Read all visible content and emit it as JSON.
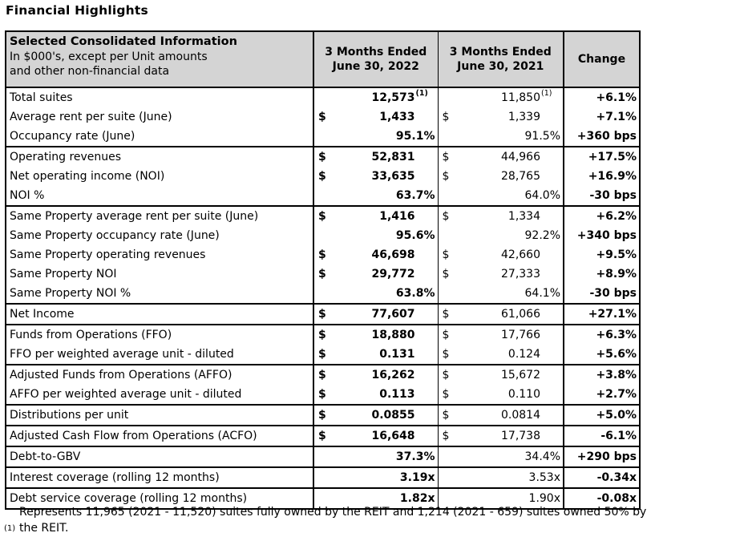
{
  "page_title": "Financial Highlights",
  "table": {
    "colors": {
      "header_bg": "#d4d4d4",
      "border": "#000000",
      "text": "#000000"
    },
    "header": {
      "info_title": "Selected Consolidated Information",
      "info_line2": "In $000's, except per Unit amounts",
      "info_line3": "and other non-financial data",
      "col_2022_line1": "3 Months Ended",
      "col_2022_line2": "June 30, 2022",
      "col_2021_line1": "3 Months Ended",
      "col_2021_line2": "June 30, 2021",
      "col_change": "Change"
    },
    "groups": [
      {
        "rows": [
          {
            "label": "Total suites",
            "y2022": {
              "currency": "",
              "value": "12,573",
              "footnote": "(1)"
            },
            "y2021": {
              "currency": "",
              "value": "11,850",
              "footnote": "(1)"
            },
            "change": "+6.1%"
          },
          {
            "label": "Average rent per suite (June)",
            "y2022": {
              "currency": "$",
              "value": "1,433"
            },
            "y2021": {
              "currency": "$",
              "value": "1,339"
            },
            "change": "+7.1%"
          },
          {
            "label": "Occupancy rate (June)",
            "y2022": {
              "currency": "",
              "value": "95.1%"
            },
            "y2021": {
              "currency": "",
              "value": "91.5%"
            },
            "change": "+360 bps"
          }
        ]
      },
      {
        "rows": [
          {
            "label": "Operating revenues",
            "y2022": {
              "currency": "$",
              "value": "52,831"
            },
            "y2021": {
              "currency": "$",
              "value": "44,966"
            },
            "change": "+17.5%"
          },
          {
            "label": "Net operating income (NOI)",
            "y2022": {
              "currency": "$",
              "value": "33,635"
            },
            "y2021": {
              "currency": "$",
              "value": "28,765"
            },
            "change": "+16.9%"
          },
          {
            "label": "NOI %",
            "y2022": {
              "currency": "",
              "value": "63.7%"
            },
            "y2021": {
              "currency": "",
              "value": "64.0%"
            },
            "change": "-30 bps"
          }
        ]
      },
      {
        "rows": [
          {
            "label": "Same Property average rent per suite (June)",
            "y2022": {
              "currency": "$",
              "value": "1,416"
            },
            "y2021": {
              "currency": "$",
              "value": "1,334"
            },
            "change": "+6.2%"
          },
          {
            "label": "Same Property occupancy rate (June)",
            "y2022": {
              "currency": "",
              "value": "95.6%"
            },
            "y2021": {
              "currency": "",
              "value": "92.2%"
            },
            "change": "+340 bps"
          },
          {
            "label": "Same Property operating revenues",
            "y2022": {
              "currency": "$",
              "value": "46,698"
            },
            "y2021": {
              "currency": "$",
              "value": "42,660"
            },
            "change": "+9.5%"
          },
          {
            "label": "Same Property NOI",
            "y2022": {
              "currency": "$",
              "value": "29,772"
            },
            "y2021": {
              "currency": "$",
              "value": "27,333"
            },
            "change": "+8.9%"
          },
          {
            "label": "Same Property NOI %",
            "y2022": {
              "currency": "",
              "value": "63.8%"
            },
            "y2021": {
              "currency": "",
              "value": "64.1%"
            },
            "change": "-30 bps"
          }
        ]
      },
      {
        "rows": [
          {
            "label": "Net Income",
            "y2022": {
              "currency": "$",
              "value": "77,607"
            },
            "y2021": {
              "currency": "$",
              "value": "61,066"
            },
            "change": "+27.1%"
          }
        ]
      },
      {
        "rows": [
          {
            "label": "Funds from Operations (FFO)",
            "y2022": {
              "currency": "$",
              "value": "18,880"
            },
            "y2021": {
              "currency": "$",
              "value": "17,766"
            },
            "change": "+6.3%"
          },
          {
            "label": "FFO per weighted average unit - diluted",
            "y2022": {
              "currency": "$",
              "value": "0.131"
            },
            "y2021": {
              "currency": "$",
              "value": "0.124"
            },
            "change": "+5.6%"
          }
        ]
      },
      {
        "rows": [
          {
            "label": "Adjusted Funds from Operations (AFFO)",
            "y2022": {
              "currency": "$",
              "value": "16,262"
            },
            "y2021": {
              "currency": "$",
              "value": "15,672"
            },
            "change": "+3.8%"
          },
          {
            "label": "AFFO per weighted average unit - diluted",
            "y2022": {
              "currency": "$",
              "value": "0.113"
            },
            "y2021": {
              "currency": "$",
              "value": "0.110"
            },
            "change": "+2.7%"
          }
        ]
      },
      {
        "rows": [
          {
            "label": "Distributions per unit",
            "y2022": {
              "currency": "$",
              "value": "0.0855"
            },
            "y2021": {
              "currency": "$",
              "value": "0.0814"
            },
            "change": "+5.0%"
          }
        ]
      },
      {
        "rows": [
          {
            "label": "Adjusted Cash Flow from Operations (ACFO)",
            "y2022": {
              "currency": "$",
              "value": "16,648"
            },
            "y2021": {
              "currency": "$",
              "value": "17,738"
            },
            "change": "-6.1%"
          }
        ]
      },
      {
        "rows": [
          {
            "label": "Debt-to-GBV",
            "y2022": {
              "currency": "",
              "value": "37.3%"
            },
            "y2021": {
              "currency": "",
              "value": "34.4%"
            },
            "change": "+290 bps"
          }
        ]
      },
      {
        "rows": [
          {
            "label": "Interest coverage (rolling 12 months)",
            "y2022": {
              "currency": "",
              "value": "3.19x"
            },
            "y2021": {
              "currency": "",
              "value": "3.53x"
            },
            "change": "-0.34x"
          }
        ]
      },
      {
        "rows": [
          {
            "label": "Debt service coverage (rolling 12 months)",
            "y2022": {
              "currency": "",
              "value": "1.82x"
            },
            "y2021": {
              "currency": "",
              "value": "1.90x"
            },
            "change": "-0.08x"
          }
        ]
      }
    ]
  },
  "footnote": {
    "marker": "(1)",
    "text": "Represents 11,965 (2021 - 11,520) suites fully owned by the REIT and 1,214 (2021 - 659) suites owned 50% by the REIT."
  }
}
